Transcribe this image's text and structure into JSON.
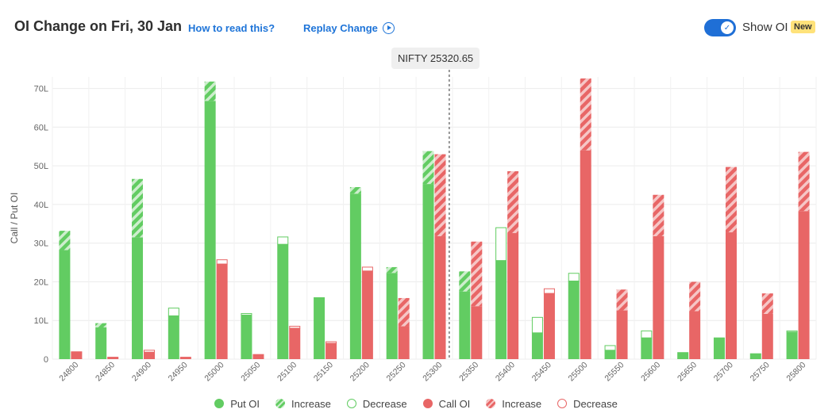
{
  "header": {
    "title": "OI Change on Fri, 30 Jan",
    "how_to_read": "How to read this?",
    "replay": "Replay Change",
    "show_oi": "Show OI",
    "new_badge": "New",
    "toggle_on": true
  },
  "tooltip": {
    "text": "NIFTY 25320.65"
  },
  "colors": {
    "put": "#62cc62",
    "put_light": "#cdeecd",
    "call": "#e86666",
    "call_light": "#f6c6c6"
  },
  "legend": {
    "put_oi": "Put OI",
    "put_increase": "Increase",
    "put_decrease": "Decrease",
    "call_oi": "Call OI",
    "call_increase": "Increase",
    "call_decrease": "Decrease"
  },
  "chart_data": {
    "type": "bar",
    "ylabel": "Call / Put OI",
    "yticks": [
      "0",
      "10L",
      "20L",
      "30L",
      "40L",
      "50L",
      "60L",
      "70L"
    ],
    "ylim": [
      0,
      73
    ],
    "spot": 25320.65,
    "categories": [
      "24800",
      "24850",
      "24900",
      "24950",
      "25000",
      "25050",
      "25100",
      "25150",
      "25200",
      "25250",
      "25300",
      "25350",
      "25400",
      "25450",
      "25500",
      "25550",
      "25600",
      "25650",
      "25700",
      "25750",
      "25800"
    ],
    "series": [
      {
        "name": "Put OI",
        "current": [
          33.2,
          9.3,
          46.6,
          11.2,
          71.8,
          11.4,
          29.7,
          16.0,
          44.5,
          23.8,
          53.8,
          22.7,
          25.5,
          6.8,
          20.2,
          2.3,
          5.5,
          1.8,
          5.6,
          1.5,
          7.0
        ],
        "base": [
          28.2,
          8.2,
          31.5,
          11.2,
          66.8,
          11.4,
          29.7,
          16.0,
          42.8,
          22.3,
          45.3,
          17.5,
          25.5,
          6.8,
          20.2,
          2.3,
          5.5,
          1.8,
          5.6,
          1.5,
          7.0
        ],
        "previous": [
          28.2,
          8.2,
          31.5,
          13.2,
          66.8,
          11.8,
          31.6,
          16.0,
          42.8,
          22.3,
          45.3,
          17.5,
          34.0,
          10.8,
          22.2,
          3.5,
          7.3,
          1.8,
          5.6,
          1.5,
          7.3
        ]
      },
      {
        "name": "Call OI",
        "current": [
          1.7,
          0.6,
          1.8,
          0.6,
          24.6,
          1.3,
          8.0,
          4.1,
          22.8,
          15.8,
          53.0,
          30.4,
          48.6,
          17.0,
          72.6,
          18.0,
          42.5,
          20.0,
          49.7,
          17.0,
          53.6
        ],
        "base": [
          1.7,
          0.6,
          1.8,
          0.6,
          24.6,
          1.3,
          8.0,
          4.1,
          22.8,
          8.5,
          31.8,
          13.7,
          32.6,
          17.0,
          54.0,
          12.6,
          31.8,
          12.4,
          32.8,
          11.7,
          38.3
        ],
        "previous": [
          1.9,
          0.6,
          2.3,
          0.6,
          25.7,
          1.3,
          8.5,
          4.5,
          23.8,
          8.5,
          31.8,
          13.7,
          32.6,
          18.2,
          54.0,
          12.6,
          31.8,
          12.4,
          32.8,
          11.7,
          38.3
        ]
      }
    ]
  }
}
